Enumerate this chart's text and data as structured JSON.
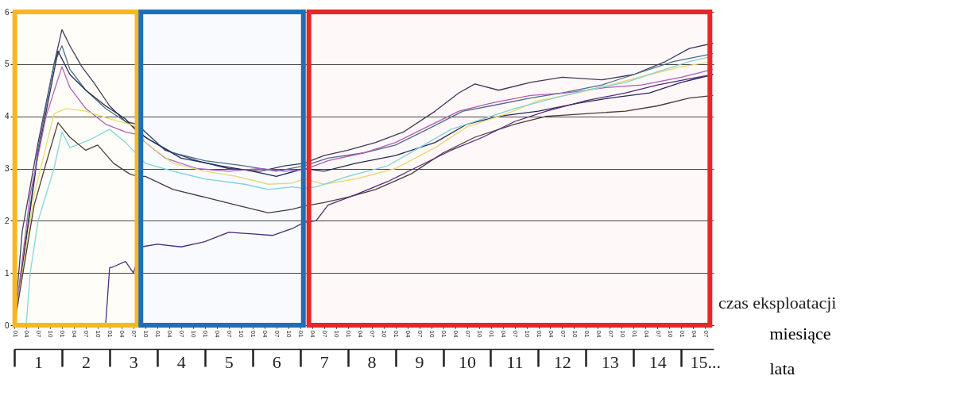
{
  "chart_data": {
    "type": "line",
    "xlabel": "miesiące",
    "x2label": "lata",
    "annotations": [
      "czas eksploatacji"
    ],
    "xlim": [
      "0001-01-01",
      "0015-09-05"
    ],
    "ylim": [
      0,
      6
    ],
    "yticks": [
      0,
      1,
      2,
      3,
      4,
      5,
      6
    ],
    "x2lim": [
      0,
      14.68
    ],
    "xticks": [
      {
        "value": "0001-01",
        "label": "01"
      },
      {
        "value": "0001-04",
        "label": "04"
      },
      {
        "value": "0001-07",
        "label": "07"
      },
      {
        "value": "0001-10",
        "label": "10"
      },
      {
        "value": "0002-01",
        "label": "01"
      },
      {
        "value": "0002-04",
        "label": "04"
      },
      {
        "value": "0002-07",
        "label": "07"
      },
      {
        "value": "0002-10",
        "label": "10"
      },
      {
        "value": "0003-01",
        "label": "01"
      },
      {
        "value": "0003-04",
        "label": "04"
      },
      {
        "value": "0003-07",
        "label": "07"
      },
      {
        "value": "0003-10",
        "label": "10"
      },
      {
        "value": "0004-01",
        "label": "01"
      },
      {
        "value": "0004-04",
        "label": "04"
      },
      {
        "value": "0004-07",
        "label": "07"
      },
      {
        "value": "0004-10",
        "label": "10"
      },
      {
        "value": "0005-01",
        "label": "01"
      },
      {
        "value": "0005-04",
        "label": "04"
      },
      {
        "value": "0005-07",
        "label": "07"
      },
      {
        "value": "0005-10",
        "label": "10"
      },
      {
        "value": "0006-01",
        "label": "01"
      },
      {
        "value": "0006-04",
        "label": "04"
      },
      {
        "value": "0006-07",
        "label": "07"
      },
      {
        "value": "0006-10",
        "label": "10"
      },
      {
        "value": "0007-01",
        "label": "01"
      },
      {
        "value": "0007-04",
        "label": "04"
      },
      {
        "value": "0007-07",
        "label": "07"
      },
      {
        "value": "0007-10",
        "label": "10"
      },
      {
        "value": "0008-01",
        "label": "01"
      },
      {
        "value": "0008-04",
        "label": "04"
      },
      {
        "value": "0008-07",
        "label": "07"
      },
      {
        "value": "0008-10",
        "label": "10"
      },
      {
        "value": "0009-01",
        "label": "01"
      },
      {
        "value": "0009-04",
        "label": "04"
      },
      {
        "value": "0009-07",
        "label": "07"
      },
      {
        "value": "0009-10",
        "label": "10"
      },
      {
        "value": "0010-01",
        "label": "01"
      },
      {
        "value": "0010-04",
        "label": "04"
      },
      {
        "value": "0010-07",
        "label": "07"
      },
      {
        "value": "0010-10",
        "label": "10"
      },
      {
        "value": "0011-01",
        "label": "01"
      },
      {
        "value": "0011-04",
        "label": "04"
      },
      {
        "value": "0011-07",
        "label": "07"
      },
      {
        "value": "0011-10",
        "label": "10"
      },
      {
        "value": "0012-01",
        "label": "01"
      },
      {
        "value": "0012-04",
        "label": "04"
      },
      {
        "value": "0012-07",
        "label": "07"
      },
      {
        "value": "0012-10",
        "label": "10"
      },
      {
        "value": "0013-01",
        "label": "01"
      },
      {
        "value": "0013-04",
        "label": "04"
      },
      {
        "value": "0013-07",
        "label": "07"
      },
      {
        "value": "0013-10",
        "label": "10"
      },
      {
        "value": "0014-01",
        "label": "01"
      },
      {
        "value": "0014-04",
        "label": "04"
      },
      {
        "value": "0014-07",
        "label": "07"
      },
      {
        "value": "0014-10",
        "label": "10"
      },
      {
        "value": "0015-01",
        "label": "01"
      },
      {
        "value": "0015-04",
        "label": "04"
      },
      {
        "value": "0015-07",
        "label": "07"
      }
    ],
    "x2ticks": [
      {
        "value": 0,
        "label": null
      },
      {
        "value": 0.5,
        "label": "1"
      },
      {
        "value": 1,
        "label": null
      },
      {
        "value": 1.5,
        "label": "2"
      },
      {
        "value": 2,
        "label": null
      },
      {
        "value": 2.5,
        "label": "3"
      },
      {
        "value": 3,
        "label": null
      },
      {
        "value": 3.5,
        "label": "4"
      },
      {
        "value": 4,
        "label": null
      },
      {
        "value": 4.5,
        "label": "5"
      },
      {
        "value": 5,
        "label": null
      },
      {
        "value": 5.5,
        "label": "6"
      },
      {
        "value": 6,
        "label": null
      },
      {
        "value": 6.5,
        "label": "7"
      },
      {
        "value": 7,
        "label": null
      },
      {
        "value": 7.5,
        "label": "8"
      },
      {
        "value": 8,
        "label": null
      },
      {
        "value": 8.5,
        "label": "9"
      },
      {
        "value": 9,
        "label": null
      },
      {
        "value": 9.5,
        "label": "10"
      },
      {
        "value": 10,
        "label": null
      },
      {
        "value": 10.5,
        "label": "11"
      },
      {
        "value": 11,
        "label": null
      },
      {
        "value": 11.5,
        "label": "12"
      },
      {
        "value": 12,
        "label": null
      },
      {
        "value": 12.5,
        "label": "13"
      },
      {
        "value": 13,
        "label": null
      },
      {
        "value": 13.5,
        "label": "14"
      },
      {
        "value": 14,
        "label": null
      },
      {
        "value": 14.5,
        "label": "15..."
      }
    ],
    "grid": "y",
    "legend": false,
    "marker": "none",
    "line_style": "solid",
    "bands": [
      {
        "axis": "x",
        "from": "0001-01-05",
        "to": "0003-07-30",
        "color": "#f5b820"
      },
      {
        "axis": "x",
        "from": "0003-08-28",
        "to": "0007-01-26",
        "color": "#1f6fb8"
      },
      {
        "axis": "x",
        "from": "0007-03-07",
        "to": "0015-08-07",
        "color": "#e8262a"
      }
    ],
    "series": [
      {
        "color": "#3a3a5c",
        "x": [
          "0001-01",
          "0001-03",
          "0001-07",
          "0001-11",
          "0002-01",
          "0002-03",
          "0002-06",
          "0002-09",
          "0003-01",
          "0003-05",
          "0003-08",
          "0003-10",
          "0004-03",
          "0004-11",
          "0005-07",
          "0006-03",
          "0006-09",
          "0007-02",
          "0007-07",
          "0008-01",
          "0008-08",
          "0009-03",
          "0009-11",
          "0010-05",
          "0010-09",
          "0011-03",
          "0011-11",
          "0012-07",
          "0013-05",
          "0014-01",
          "0014-09",
          "0015-03",
          "0015-09"
        ],
        "values": [
          0,
          1.8,
          3.5,
          5.0,
          5.66,
          5.35,
          4.95,
          4.65,
          4.2,
          3.9,
          3.85,
          3.7,
          3.35,
          3.15,
          3.0,
          2.95,
          3.05,
          3.1,
          3.25,
          3.35,
          3.5,
          3.7,
          4.1,
          4.45,
          4.62,
          4.5,
          4.65,
          4.75,
          4.7,
          4.8,
          5.05,
          5.3,
          5.4
        ]
      },
      {
        "color": "#4a6f8a",
        "x": [
          "0001-01",
          "0001-07",
          "0001-11",
          "0002-01",
          "0002-03",
          "0002-07",
          "0002-12",
          "0003-05",
          "0003-08",
          "0003-10",
          "0004-05",
          "0005-01",
          "0005-11",
          "0006-07",
          "0007-02",
          "0007-08",
          "0008-05",
          "0009-01",
          "0009-09",
          "0010-06",
          "0011-01",
          "0011-11",
          "0012-07",
          "0013-05",
          "0014-01",
          "0014-11",
          "0015-09"
        ],
        "values": [
          0,
          3.4,
          5.0,
          5.35,
          4.9,
          4.5,
          4.15,
          3.9,
          3.75,
          3.6,
          3.3,
          3.15,
          3.05,
          2.95,
          3.05,
          3.2,
          3.3,
          3.45,
          3.75,
          4.1,
          4.2,
          4.35,
          4.45,
          4.6,
          4.8,
          5.05,
          5.2
        ]
      },
      {
        "color": "#1f2a5a",
        "x": [
          "0001-01",
          "0001-07",
          "0001-12",
          "0002-03",
          "0002-07",
          "0002-12",
          "0003-05",
          "0003-08",
          "0003-11",
          "0004-07",
          "0005-05",
          "0006-01",
          "0006-07",
          "0007-02",
          "0007-07",
          "0008-03",
          "0009-01",
          "0009-11",
          "0010-07",
          "0011-03",
          "0012-01",
          "0012-11",
          "0013-07",
          "0014-05",
          "0015-01",
          "0015-09"
        ],
        "values": [
          0,
          3.3,
          5.25,
          4.8,
          4.5,
          4.2,
          3.95,
          3.7,
          3.55,
          3.2,
          3.05,
          2.95,
          2.85,
          3.0,
          2.95,
          3.1,
          3.25,
          3.5,
          3.85,
          4.0,
          4.1,
          4.25,
          4.35,
          4.45,
          4.65,
          4.8
        ]
      },
      {
        "color": "#b05cc0",
        "x": [
          "0001-01",
          "0001-05",
          "0001-09",
          "0002-01",
          "0002-03",
          "0002-07",
          "0002-12",
          "0003-05",
          "0003-08",
          "0003-10",
          "0004-03",
          "0004-11",
          "0005-07",
          "0006-03",
          "0006-09",
          "0007-02",
          "0007-08",
          "0008-05",
          "0009-01",
          "0009-09",
          "0010-05",
          "0011-01",
          "0011-11",
          "0012-08",
          "0013-06",
          "0014-03",
          "0015-01",
          "0015-09"
        ],
        "values": [
          0,
          2.5,
          4.0,
          4.95,
          4.55,
          4.15,
          3.85,
          3.7,
          3.65,
          3.5,
          3.2,
          3.0,
          2.95,
          3.0,
          2.95,
          2.98,
          3.15,
          3.3,
          3.5,
          3.8,
          4.1,
          4.25,
          4.4,
          4.45,
          4.55,
          4.6,
          4.75,
          4.9
        ]
      },
      {
        "color": "#e8e070",
        "x": [
          "0001-01",
          "0001-06",
          "0001-11",
          "0002-02",
          "0002-07",
          "0003-01",
          "0003-06",
          "0003-08",
          "0003-10",
          "0004-05",
          "0005-01",
          "0005-09",
          "0006-05",
          "0006-11",
          "0007-02",
          "0007-07",
          "0008-03",
          "0009-01",
          "0009-11",
          "0010-07",
          "0011-05",
          "0012-01",
          "0012-11",
          "0013-07",
          "0014-05",
          "0015-01",
          "0015-09"
        ],
        "values": [
          0,
          2.5,
          4.05,
          4.15,
          4.1,
          3.95,
          3.85,
          3.8,
          3.5,
          3.1,
          2.95,
          2.85,
          2.7,
          2.72,
          2.8,
          2.7,
          2.8,
          3.0,
          3.4,
          3.8,
          4.05,
          4.3,
          4.45,
          4.6,
          4.8,
          4.95,
          5.05
        ]
      },
      {
        "color": "#7fd8e0",
        "x": [
          "0001-04",
          "0001-05",
          "0001-07",
          "0001-11",
          "0002-01",
          "0002-03",
          "0002-08",
          "0003-01",
          "0003-05",
          "0003-10",
          "0004-05",
          "0005-01",
          "0005-11",
          "0006-05",
          "0006-11",
          "0007-02",
          "0007-05",
          "0008-01",
          "0008-11",
          "0009-07",
          "0010-03",
          "0010-11",
          "0011-07",
          "0012-05",
          "0013-01",
          "0013-11",
          "0014-07",
          "0015-03",
          "0015-09"
        ],
        "values": [
          0,
          1.0,
          2.0,
          3.0,
          3.7,
          3.4,
          3.55,
          3.75,
          3.5,
          3.1,
          2.95,
          2.8,
          2.7,
          2.6,
          2.65,
          2.62,
          2.65,
          2.85,
          3.05,
          3.4,
          3.75,
          3.95,
          4.15,
          4.35,
          4.5,
          4.65,
          4.85,
          5.05,
          5.15
        ]
      },
      {
        "color": "#4a3a3a",
        "x": [
          "0001-01",
          "0001-06",
          "0001-09",
          "0001-12",
          "0002-03",
          "0002-07",
          "0002-10",
          "0003-02",
          "0003-06",
          "0003-08",
          "0003-10",
          "0004-05",
          "0005-01",
          "0005-09",
          "0006-05",
          "0006-11",
          "0007-02",
          "0007-07",
          "0008-01",
          "0008-08",
          "0009-05",
          "0010-01",
          "0010-09",
          "0011-07",
          "0012-03",
          "0013-01",
          "0013-11",
          "0014-07",
          "0015-03",
          "0015-09"
        ],
        "values": [
          0,
          2.3,
          3.1,
          3.88,
          3.6,
          3.35,
          3.45,
          3.1,
          2.9,
          2.85,
          2.85,
          2.6,
          2.45,
          2.3,
          2.15,
          2.22,
          2.28,
          2.35,
          2.45,
          2.6,
          2.9,
          3.3,
          3.6,
          3.85,
          4.0,
          4.05,
          4.1,
          4.2,
          4.35,
          4.4
        ]
      },
      {
        "color": "#4b2c7a",
        "x": [
          "0002-12",
          "0003-01",
          "0003-02",
          "0003-05",
          "0003-07",
          "0003-09",
          "0004-01",
          "0004-07",
          "0005-01",
          "0005-07",
          "0006-01",
          "0006-06",
          "0006-11",
          "0007-02",
          "0007-05",
          "0007-08",
          "0008-03",
          "0008-11",
          "0009-07",
          "0010-03",
          "0010-11",
          "0011-07",
          "0012-03",
          "0013-01",
          "0013-11",
          "0014-07",
          "0015-03",
          "0015-09"
        ],
        "values": [
          0,
          1.1,
          1.12,
          1.22,
          1.0,
          1.5,
          1.55,
          1.5,
          1.6,
          1.78,
          1.75,
          1.72,
          1.85,
          1.97,
          2.0,
          2.3,
          2.5,
          2.75,
          3.05,
          3.35,
          3.6,
          3.9,
          4.1,
          4.3,
          4.45,
          4.6,
          4.72,
          4.8
        ]
      }
    ]
  }
}
